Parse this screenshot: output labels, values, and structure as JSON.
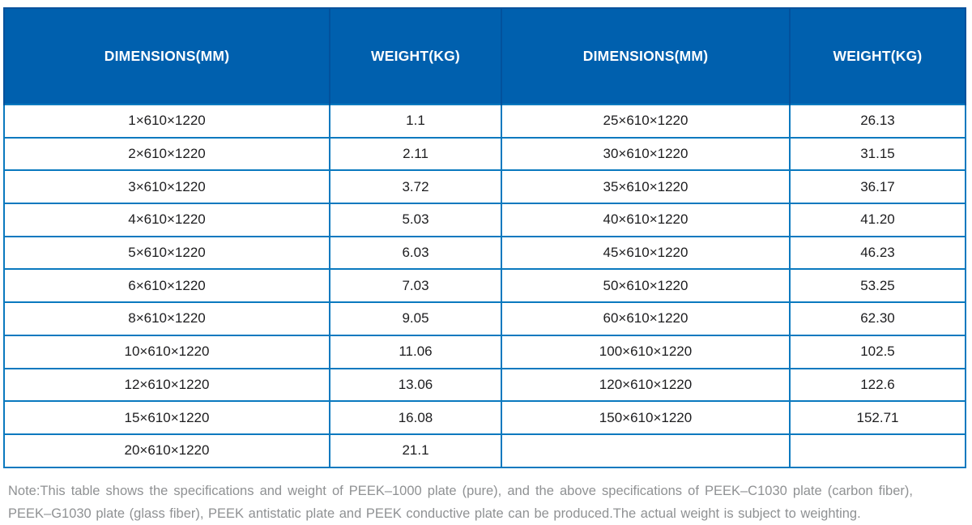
{
  "table": {
    "headers": [
      "DIMENSIONS(MM)",
      "WEIGHT(KG)",
      "DIMENSIONS(MM)",
      "WEIGHT(KG)"
    ],
    "rows": [
      [
        "1×610×1220",
        "1.1",
        "25×610×1220",
        "26.13"
      ],
      [
        "2×610×1220",
        "2.11",
        "30×610×1220",
        "31.15"
      ],
      [
        "3×610×1220",
        "3.72",
        "35×610×1220",
        "36.17"
      ],
      [
        "4×610×1220",
        "5.03",
        "40×610×1220",
        "41.20"
      ],
      [
        "5×610×1220",
        "6.03",
        "45×610×1220",
        "46.23"
      ],
      [
        "6×610×1220",
        "7.03",
        "50×610×1220",
        "53.25"
      ],
      [
        "8×610×1220",
        "9.05",
        "60×610×1220",
        "62.30"
      ],
      [
        "10×610×1220",
        "11.06",
        "100×610×1220",
        "102.5"
      ],
      [
        "12×610×1220",
        "13.06",
        "120×610×1220",
        "122.6"
      ],
      [
        "15×610×1220",
        "16.08",
        "150×610×1220",
        "152.71"
      ],
      [
        "20×610×1220",
        "21.1",
        "",
        ""
      ]
    ]
  },
  "note": {
    "line1": "Note:This table shows the specifications and weight of PEEK–1000 plate (pure), and the above specifications of PEEK–C1030 plate (carbon fiber),",
    "line2": "PEEK–G1030 plate (glass fiber), PEEK antistatic plate and PEEK conductive plate can be produced.The actual weight is subject to weighting."
  },
  "colors": {
    "header_bg": "#0060ae",
    "header_divider": "#03519c",
    "grid_border": "#0a79bf",
    "cell_text": "#1d1d1f",
    "note_text": "#8f9193"
  }
}
